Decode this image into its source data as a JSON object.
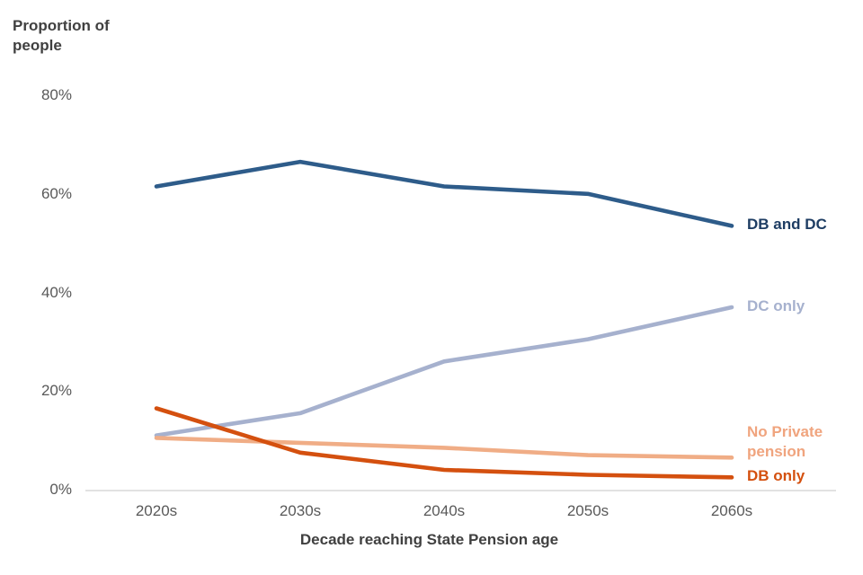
{
  "chart_data": {
    "type": "line",
    "title": "Proportion of people",
    "xlabel": "Decade reaching State Pension age",
    "ylabel": "Proportion of people",
    "categories": [
      "2020s",
      "2030s",
      "2040s",
      "2050s",
      "2060s"
    ],
    "yticks": [
      {
        "label": "80%",
        "v": 80
      },
      {
        "label": "60%",
        "v": 60
      },
      {
        "label": "40%",
        "v": 40
      },
      {
        "label": "20%",
        "v": 20
      },
      {
        "label": "0%",
        "v": 0
      }
    ],
    "ylim": [
      0,
      80
    ],
    "grid": false,
    "legend_position": "labels-at-line-ends-right",
    "axis_color": "#D9D9D9",
    "tick_color": "#595959",
    "title_color": "#404040",
    "series": [
      {
        "name": "DB and DC",
        "values": [
          61.5,
          66.5,
          61.5,
          60,
          53.5
        ],
        "color": "#2E5C8A",
        "label_color": "#1E3D63",
        "label_dy": 0
      },
      {
        "name": "DC only",
        "values": [
          11,
          15.5,
          26,
          30.5,
          37
        ],
        "color": "#A6B1CE",
        "label_color": "#A6B1CE",
        "label_dy": 0
      },
      {
        "name": "No Private pension",
        "values": [
          10.5,
          9.5,
          8.5,
          7,
          6.5
        ],
        "color": "#F0AD86",
        "label_color": "#F0A47E",
        "label_dy": -27
      },
      {
        "name": "DB only",
        "values": [
          16.5,
          7.5,
          4,
          3,
          2.5
        ],
        "color": "#D4500F",
        "label_color": "#D4500F",
        "label_dy": 0
      }
    ]
  }
}
